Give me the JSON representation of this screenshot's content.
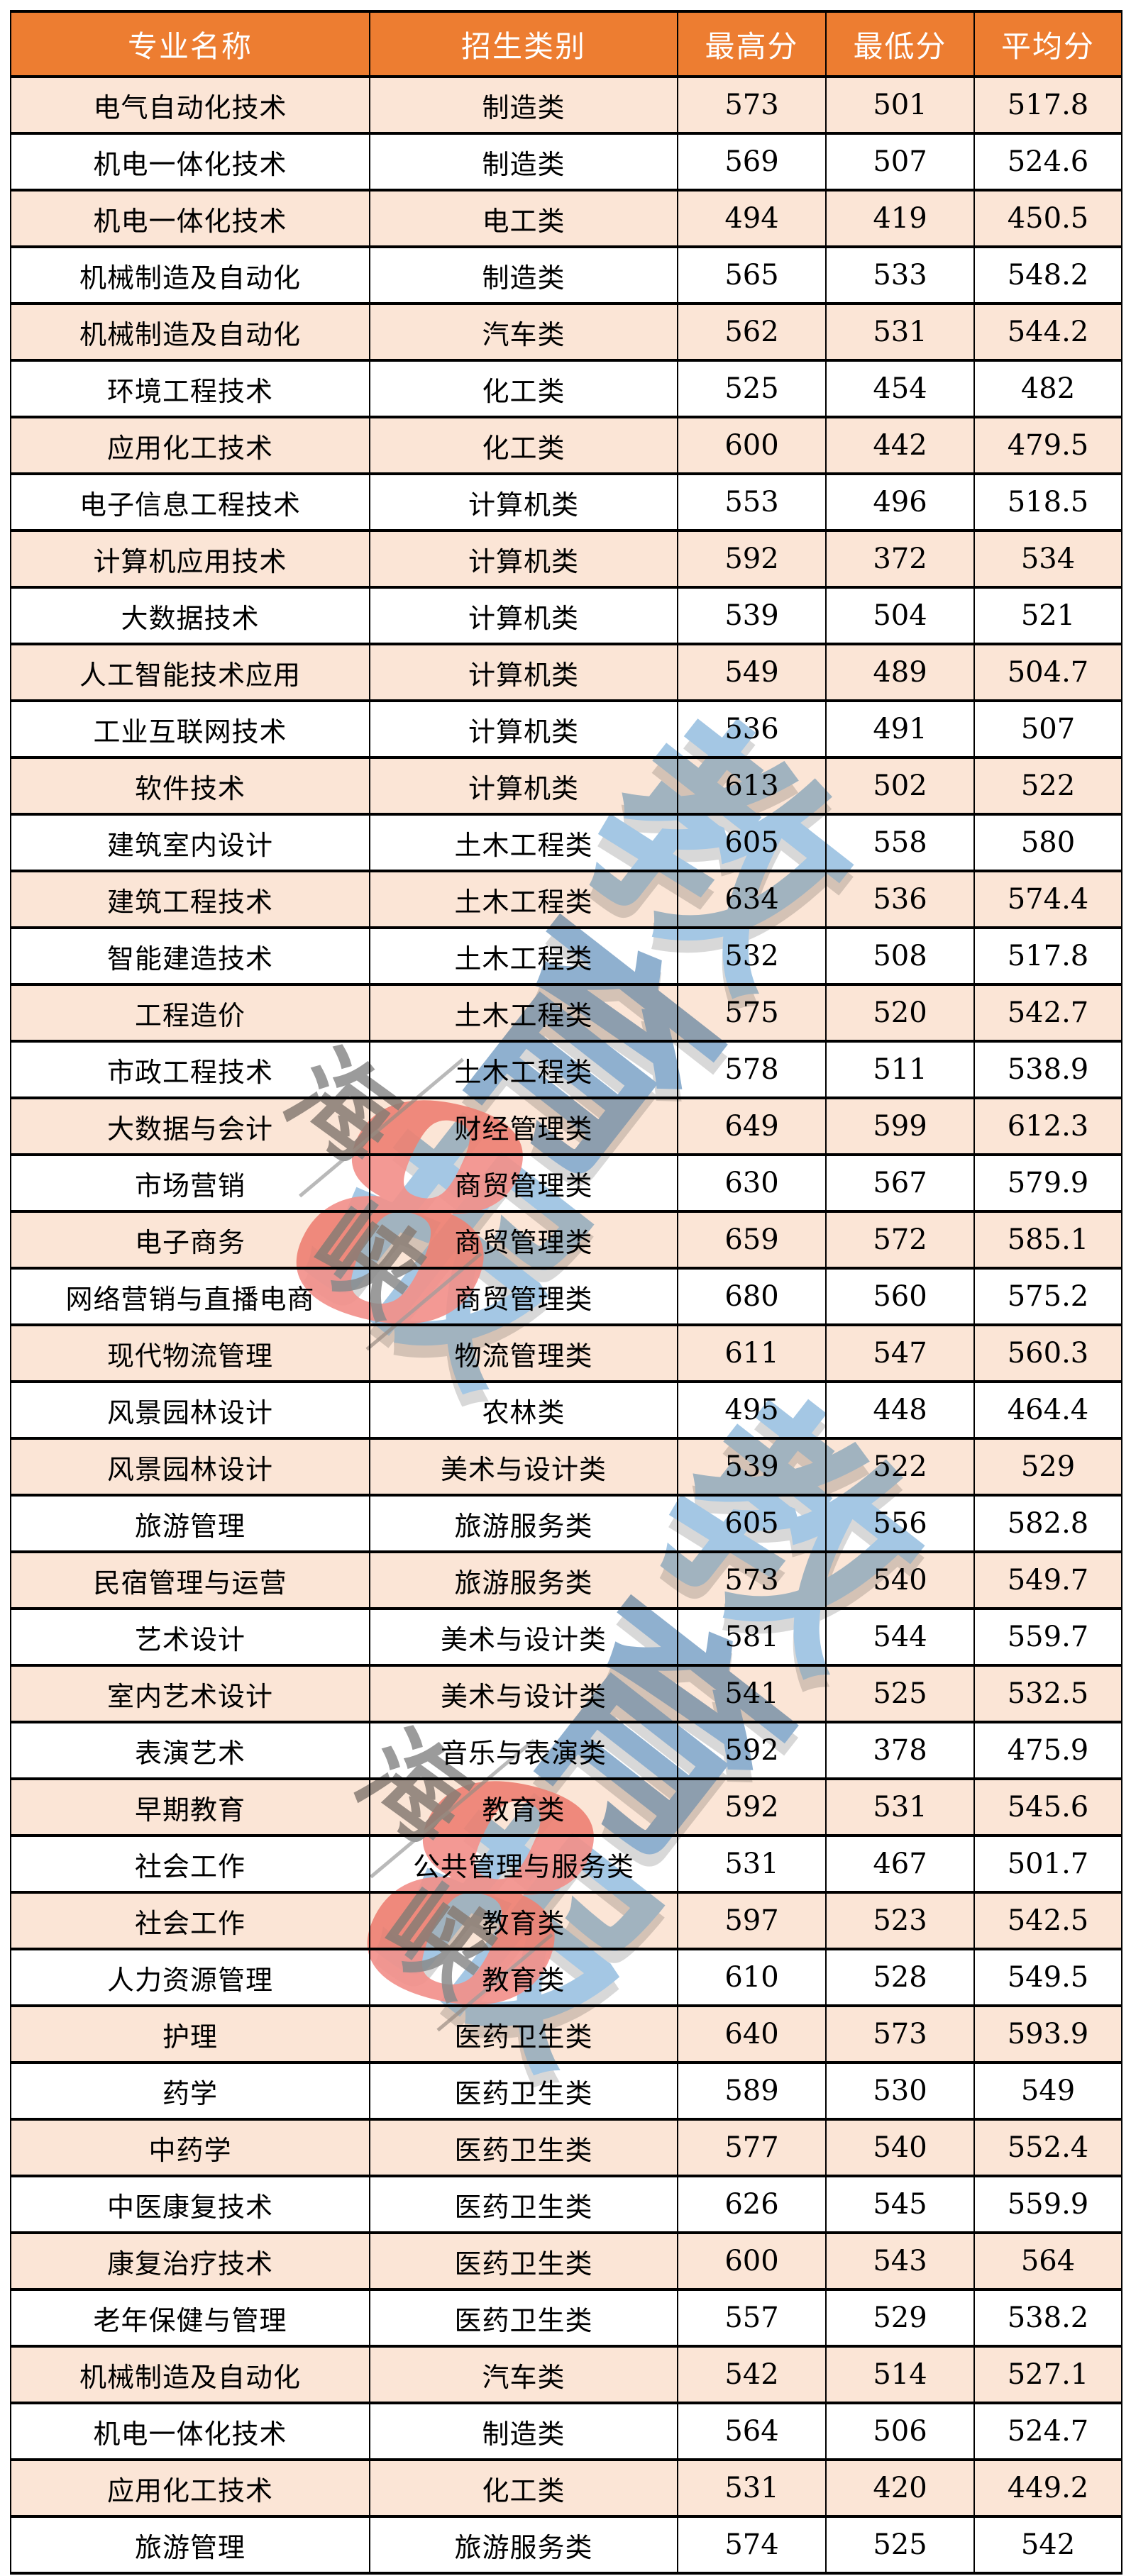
{
  "colors": {
    "header_bg": "#ED7D31",
    "header_text": "#FFFFFF",
    "stripe_row_bg": "#FBE5D6",
    "plain_row_bg": "#FFFFFF",
    "border": "#000000",
    "watermark_blue": "#A4C7E4",
    "watermark_red": "#F2918B",
    "watermark_grey": "#8A8A8A"
  },
  "watermark": {
    "brand_chars": [
      "教",
      "育",
      "报"
    ],
    "side_chars": [
      "海",
      "峡"
    ],
    "accent_glyph": "8"
  },
  "chart_data": {
    "type": "table",
    "columns": [
      "专业名称",
      "招生类别",
      "最高分",
      "最低分",
      "平均分"
    ],
    "rows": [
      [
        "电气自动化技术",
        "制造类",
        "573",
        "501",
        "517.8"
      ],
      [
        "机电一体化技术",
        "制造类",
        "569",
        "507",
        "524.6"
      ],
      [
        "机电一体化技术",
        "电工类",
        "494",
        "419",
        "450.5"
      ],
      [
        "机械制造及自动化",
        "制造类",
        "565",
        "533",
        "548.2"
      ],
      [
        "机械制造及自动化",
        "汽车类",
        "562",
        "531",
        "544.2"
      ],
      [
        "环境工程技术",
        "化工类",
        "525",
        "454",
        "482"
      ],
      [
        "应用化工技术",
        "化工类",
        "600",
        "442",
        "479.5"
      ],
      [
        "电子信息工程技术",
        "计算机类",
        "553",
        "496",
        "518.5"
      ],
      [
        "计算机应用技术",
        "计算机类",
        "592",
        "372",
        "534"
      ],
      [
        "大数据技术",
        "计算机类",
        "539",
        "504",
        "521"
      ],
      [
        "人工智能技术应用",
        "计算机类",
        "549",
        "489",
        "504.7"
      ],
      [
        "工业互联网技术",
        "计算机类",
        "536",
        "491",
        "507"
      ],
      [
        "软件技术",
        "计算机类",
        "613",
        "502",
        "522"
      ],
      [
        "建筑室内设计",
        "土木工程类",
        "605",
        "558",
        "580"
      ],
      [
        "建筑工程技术",
        "土木工程类",
        "634",
        "536",
        "574.4"
      ],
      [
        "智能建造技术",
        "土木工程类",
        "532",
        "508",
        "517.8"
      ],
      [
        "工程造价",
        "土木工程类",
        "575",
        "520",
        "542.7"
      ],
      [
        "市政工程技术",
        "土木工程类",
        "578",
        "511",
        "538.9"
      ],
      [
        "大数据与会计",
        "财经管理类",
        "649",
        "599",
        "612.3"
      ],
      [
        "市场营销",
        "商贸管理类",
        "630",
        "567",
        "579.9"
      ],
      [
        "电子商务",
        "商贸管理类",
        "659",
        "572",
        "585.1"
      ],
      [
        "网络营销与直播电商",
        "商贸管理类",
        "680",
        "560",
        "575.2"
      ],
      [
        "现代物流管理",
        "物流管理类",
        "611",
        "547",
        "560.3"
      ],
      [
        "风景园林设计",
        "农林类",
        "495",
        "448",
        "464.4"
      ],
      [
        "风景园林设计",
        "美术与设计类",
        "539",
        "522",
        "529"
      ],
      [
        "旅游管理",
        "旅游服务类",
        "605",
        "556",
        "582.8"
      ],
      [
        "民宿管理与运营",
        "旅游服务类",
        "573",
        "540",
        "549.7"
      ],
      [
        "艺术设计",
        "美术与设计类",
        "581",
        "544",
        "559.7"
      ],
      [
        "室内艺术设计",
        "美术与设计类",
        "541",
        "525",
        "532.5"
      ],
      [
        "表演艺术",
        "音乐与表演类",
        "592",
        "378",
        "475.9"
      ],
      [
        "早期教育",
        "教育类",
        "592",
        "531",
        "545.6"
      ],
      [
        "社会工作",
        "公共管理与服务类",
        "531",
        "467",
        "501.7"
      ],
      [
        "社会工作",
        "教育类",
        "597",
        "523",
        "542.5"
      ],
      [
        "人力资源管理",
        "教育类",
        "610",
        "528",
        "549.5"
      ],
      [
        "护理",
        "医药卫生类",
        "640",
        "573",
        "593.9"
      ],
      [
        "药学",
        "医药卫生类",
        "589",
        "530",
        "549"
      ],
      [
        "中药学",
        "医药卫生类",
        "577",
        "540",
        "552.4"
      ],
      [
        "中医康复技术",
        "医药卫生类",
        "626",
        "545",
        "559.9"
      ],
      [
        "康复治疗技术",
        "医药卫生类",
        "600",
        "543",
        "564"
      ],
      [
        "老年保健与管理",
        "医药卫生类",
        "557",
        "529",
        "538.2"
      ],
      [
        "机械制造及自动化",
        "汽车类",
        "542",
        "514",
        "527.1"
      ],
      [
        "机电一体化技术",
        "制造类",
        "564",
        "506",
        "524.7"
      ],
      [
        "应用化工技术",
        "化工类",
        "531",
        "420",
        "449.2"
      ],
      [
        "旅游管理",
        "旅游服务类",
        "574",
        "525",
        "542"
      ]
    ]
  }
}
